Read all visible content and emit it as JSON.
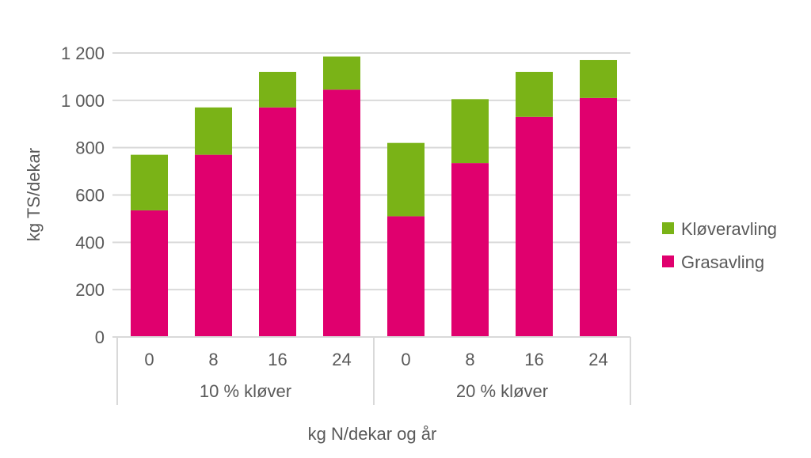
{
  "chart_data": {
    "type": "bar",
    "stacked": true,
    "title": "",
    "xlabel": "kg N/dekar og år",
    "ylabel": "kg TS/dekar",
    "ylim": [
      0,
      1200
    ],
    "yticks": [
      0,
      200,
      400,
      600,
      800,
      1000,
      1200
    ],
    "ytick_labels": [
      "0",
      "200",
      "400",
      "600",
      "800",
      "1 000",
      "1 200"
    ],
    "grid": true,
    "legend_position": "right",
    "groups": [
      {
        "label": "10 % kløver",
        "categories": [
          "0",
          "8",
          "16",
          "24"
        ]
      },
      {
        "label": "20 % kløver",
        "categories": [
          "0",
          "8",
          "16",
          "24"
        ]
      }
    ],
    "series": [
      {
        "name": "Grasavling",
        "color": "#e0006e",
        "values": [
          535,
          770,
          970,
          1045,
          510,
          735,
          930,
          1010
        ]
      },
      {
        "name": "Kløveravling",
        "color": "#7ab317",
        "values": [
          235,
          200,
          150,
          140,
          310,
          270,
          190,
          160
        ]
      }
    ],
    "legend_order": [
      "Kløveravling",
      "Grasavling"
    ],
    "gridline_color": "#d9d9d9"
  }
}
